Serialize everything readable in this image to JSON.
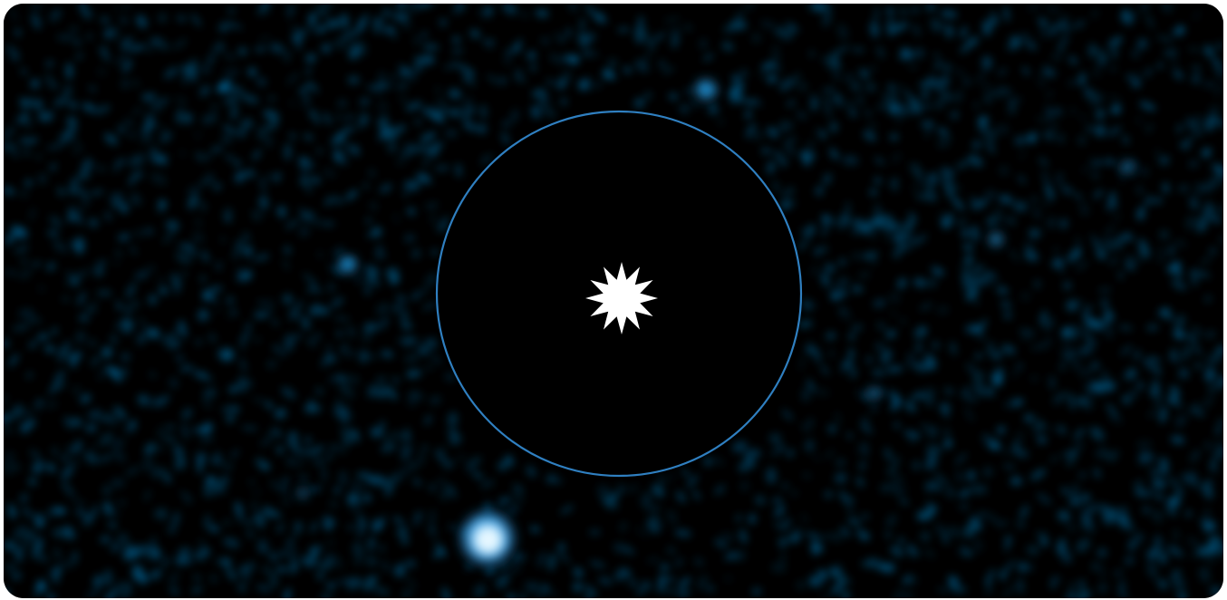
{
  "image": {
    "subject": "direct-image-of-exoplanet",
    "colors": {
      "background": "#000000",
      "noise": "#0a6fa8",
      "ring": "#2f7fc0",
      "star_marker": "#ffffff",
      "planet_core": "#eaf8ff",
      "planet_glow": "#2fa8ef"
    },
    "icons": {
      "star": "star-burst-icon",
      "mask": "coronagraph-mask-circle"
    }
  }
}
